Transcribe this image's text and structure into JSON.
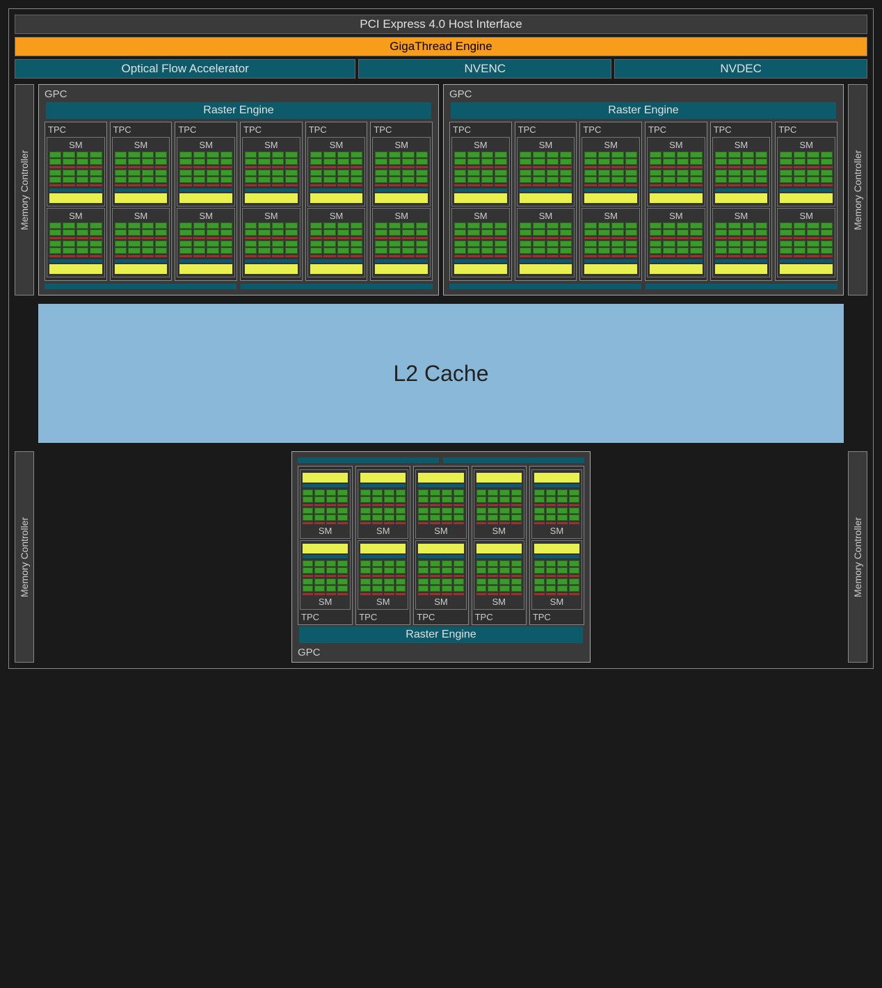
{
  "colors": {
    "background": "#1a1a1a",
    "panel": "#3a3a3a",
    "border": "#888888",
    "orange": "#f89c1c",
    "teal": "#0d5a6a",
    "l2": "#8ab8d8",
    "core_green": "#3a9a2a",
    "core_red": "#a03030",
    "yellow": "#e8f050"
  },
  "top_bars": {
    "pcie": "PCI Express 4.0 Host Interface",
    "gigathread": "GigaThread Engine",
    "ofa": "Optical Flow Accelerator",
    "nvenc": "NVENC",
    "nvdec": "NVDEC"
  },
  "labels": {
    "memory_controller": "Memory Controller",
    "gpc": "GPC",
    "raster_engine": "Raster Engine",
    "tpc": "TPC",
    "sm": "SM",
    "l2_cache": "L2 Cache"
  },
  "structure": {
    "top_gpcs": 2,
    "tpcs_per_top_gpc": 6,
    "sms_per_tpc": 2,
    "memory_controllers": 4,
    "bottom_gpc_tpcs": 5,
    "sm_core_columns": 4,
    "sm_core_rows_per_block": 2,
    "sm_blocks": 2
  },
  "fonts": {
    "bar_size": 17,
    "label_size": 15,
    "small_label_size": 13,
    "l2_size": 32
  }
}
